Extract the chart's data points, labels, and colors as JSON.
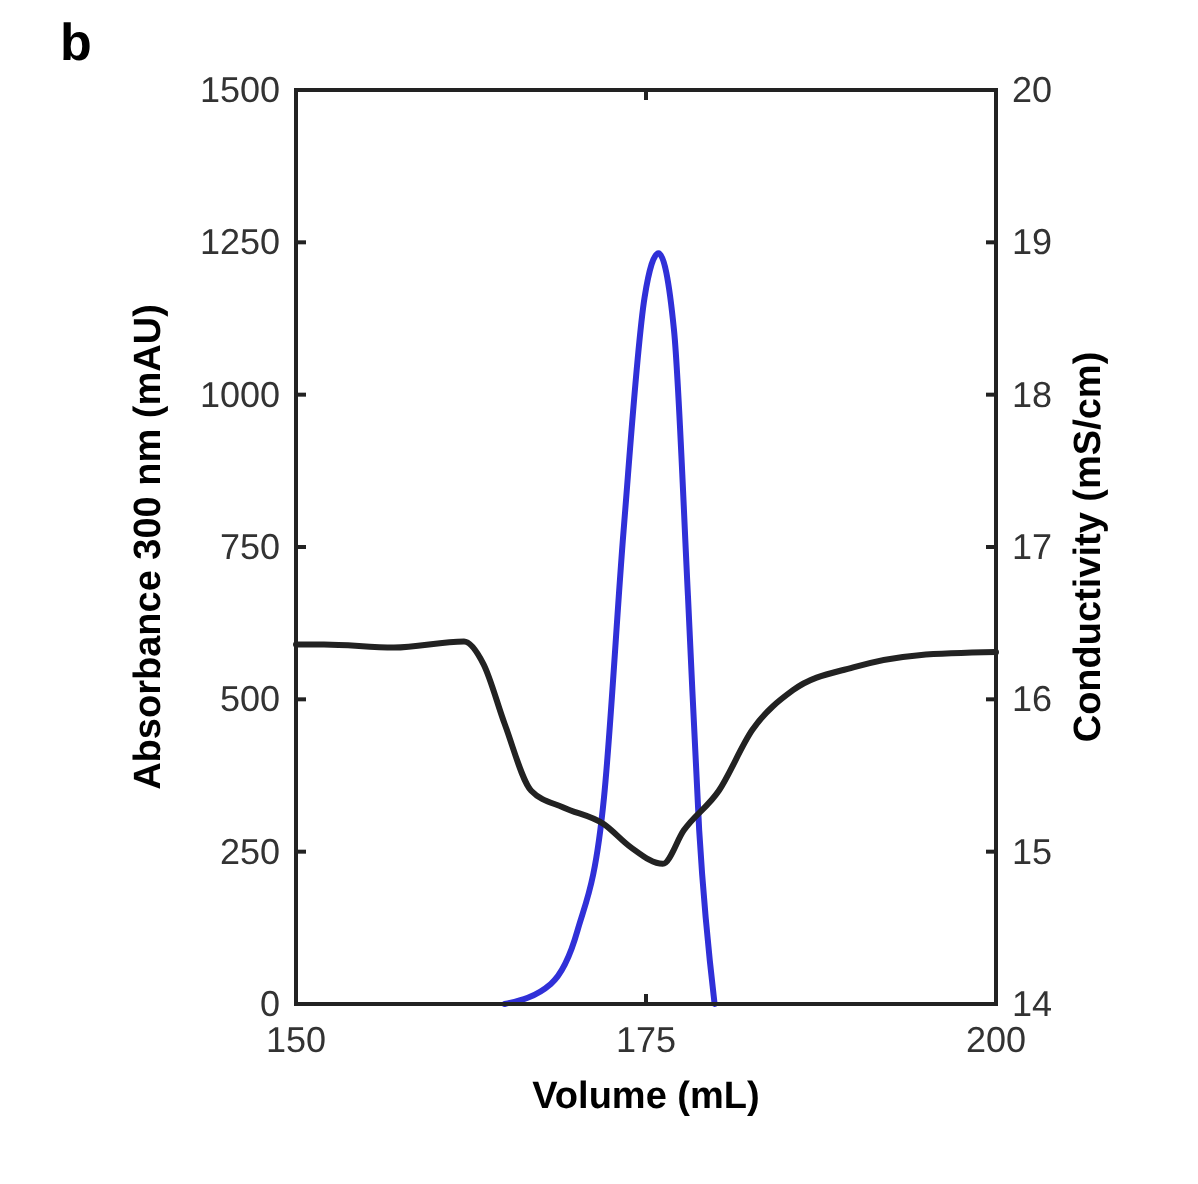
{
  "chart_data": {
    "type": "line",
    "title": "b",
    "xlabel": "Volume (mL)",
    "ylabel": "Absorbance 300 nm (mAU)",
    "y2label": "Conductivity (mS/cm)",
    "xlim": [
      150,
      200
    ],
    "xticks": [
      150,
      175,
      200
    ],
    "ylim": [
      0,
      1500
    ],
    "yticks": [
      0,
      250,
      500,
      750,
      1000,
      1250,
      1500
    ],
    "y2lim": [
      14,
      20
    ],
    "y2ticks": [
      14,
      15,
      16,
      17,
      18,
      19,
      20
    ],
    "marker": "none",
    "line_style": "solid",
    "series": [
      {
        "color": "#3030d8",
        "x": [
          164.9,
          168.2,
          170.1,
          172,
          173.4,
          174.9,
          175.9,
          177,
          178,
          178.8,
          179.9
        ],
        "values": [
          0,
          33,
          120,
          339,
          777,
          1160,
          1232,
          1106,
          668,
          285,
          0
        ]
      },
      {
        "color": "#222222",
        "axis": "y2",
        "x": [
          150,
          152,
          157,
          162,
          163.4,
          164.9,
          166.8,
          169.1,
          172,
          173.9,
          176.2,
          177.7,
          180.2,
          182.6,
          185.5,
          189.8,
          194.5,
          200
        ],
        "values": [
          16.36,
          16.36,
          16.34,
          16.38,
          16.23,
          15.84,
          15.4,
          15.29,
          15.18,
          15.03,
          14.92,
          15.14,
          15.4,
          15.8,
          16.06,
          16.21,
          16.29,
          16.31
        ]
      }
    ]
  }
}
